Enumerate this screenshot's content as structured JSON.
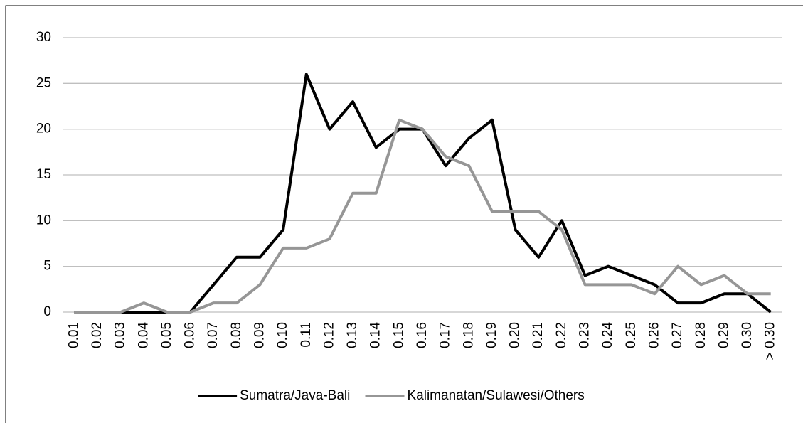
{
  "chart_data": {
    "type": "line",
    "categories": [
      "0.01",
      "0.02",
      "0.03",
      "0.04",
      "0.05",
      "0.06",
      "0.07",
      "0.08",
      "0.09",
      "0.10",
      "0.11",
      "0.12",
      "0.13",
      "0.14",
      "0.15",
      "0.16",
      "0.17",
      "0.18",
      "0.19",
      "0.20",
      "0.21",
      "0.22",
      "0.23",
      "0.24",
      "0.25",
      "0.26",
      "0.27",
      "0.28",
      "0.29",
      "0.30",
      "> 0.30"
    ],
    "series": [
      {
        "name": "Sumatra/Java-Bali",
        "color": "#000000",
        "values": [
          0,
          0,
          0,
          0,
          0,
          0,
          3,
          6,
          6,
          9,
          26,
          20,
          23,
          18,
          20,
          20,
          16,
          19,
          21,
          9,
          6,
          10,
          4,
          5,
          4,
          3,
          1,
          1,
          2,
          2,
          0
        ]
      },
      {
        "name": "Kalimanatan/Sulawesi/Others",
        "color": "#969696",
        "values": [
          0,
          0,
          0,
          1,
          0,
          0,
          1,
          1,
          3,
          7,
          7,
          8,
          13,
          13,
          21,
          20,
          17,
          16,
          11,
          11,
          11,
          9,
          3,
          3,
          3,
          2,
          5,
          3,
          4,
          2,
          2
        ]
      }
    ],
    "ylim": [
      0,
      30
    ],
    "yticks": [
      0,
      5,
      10,
      15,
      20,
      25,
      30
    ],
    "grid": true,
    "legend": "bottom"
  }
}
